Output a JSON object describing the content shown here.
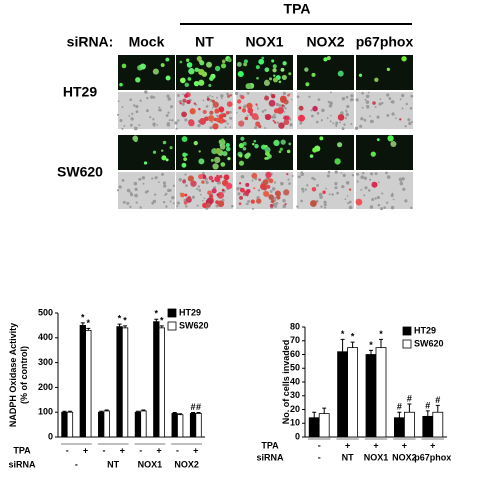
{
  "panel": {
    "header": "TPA",
    "row_label": "siRNA:",
    "columns": [
      "Mock",
      "NT",
      "NOX1",
      "NOX2",
      "p67phox"
    ],
    "rows": [
      "HT29",
      "SW620"
    ]
  },
  "chart_data": [
    {
      "type": "bar",
      "y_label": [
        "NADPH Oxidase Activity",
        "(% of control)"
      ],
      "row_labels": [
        "TPA",
        "siRNA"
      ],
      "categories": [
        "-",
        "+",
        "-",
        "+",
        "-",
        "+",
        "-",
        "+"
      ],
      "groups": [
        "-",
        "NT",
        "NOX1",
        "NOX2"
      ],
      "ylim": [
        0,
        500
      ],
      "yticks": [
        0,
        100,
        200,
        300,
        400,
        500
      ],
      "series": [
        {
          "name": "HT29",
          "color": "#000000",
          "values": [
            100,
            450,
            100,
            445,
            100,
            465,
            95,
            95
          ],
          "errors": [
            4,
            10,
            4,
            10,
            4,
            10,
            4,
            4
          ],
          "markers": [
            null,
            "*",
            null,
            "*",
            null,
            "*",
            null,
            "#"
          ]
        },
        {
          "name": "SW620",
          "color": "#ffffff",
          "values": [
            100,
            430,
            105,
            440,
            105,
            440,
            90,
            95
          ],
          "errors": [
            4,
            8,
            4,
            8,
            4,
            8,
            4,
            4
          ],
          "markers": [
            null,
            "*",
            null,
            "*",
            null,
            "*",
            null,
            "#"
          ]
        }
      ]
    },
    {
      "type": "bar",
      "y_label": [
        "No. of cells invaded"
      ],
      "row_labels": [
        "TPA",
        "siRNA"
      ],
      "categories": [
        "-",
        "+",
        "+",
        "+",
        "+"
      ],
      "groups": [
        "-",
        "NT",
        "NOX1",
        "NOX2",
        "p67phox"
      ],
      "ylim": [
        0,
        80
      ],
      "yticks": [
        0,
        10,
        20,
        30,
        40,
        50,
        60,
        70,
        80
      ],
      "series": [
        {
          "name": "HT29",
          "color": "#000000",
          "values": [
            14,
            62,
            60,
            14,
            15
          ],
          "errors": [
            4,
            9,
            3,
            4,
            4
          ],
          "markers": [
            null,
            "*",
            "*",
            "#",
            "#"
          ]
        },
        {
          "name": "SW620",
          "color": "#ffffff",
          "values": [
            17,
            65,
            65,
            18,
            18
          ],
          "errors": [
            4,
            4,
            6,
            6,
            5
          ],
          "markers": [
            null,
            "*",
            "*",
            "#",
            "#"
          ]
        }
      ]
    }
  ]
}
